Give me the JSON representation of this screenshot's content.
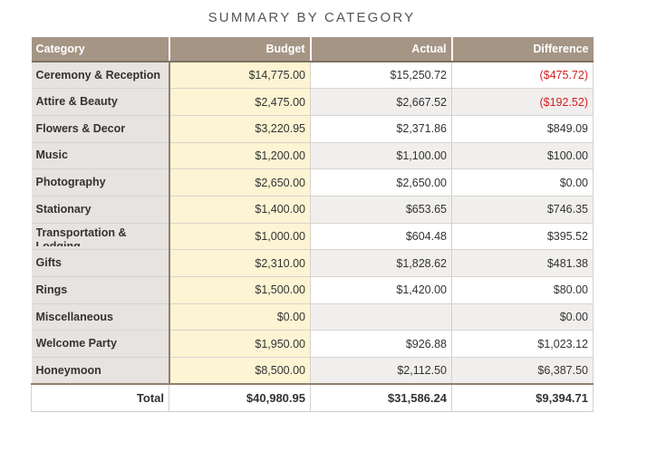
{
  "title": "SUMMARY BY CATEGORY",
  "headers": {
    "category": "Category",
    "budget": "Budget",
    "actual": "Actual",
    "difference": "Difference"
  },
  "rows": [
    {
      "category": "Ceremony & Reception",
      "budget": "$14,775.00",
      "actual": "$15,250.72",
      "difference": "($475.72)",
      "negative": true
    },
    {
      "category": "Attire & Beauty",
      "budget": "$2,475.00",
      "actual": "$2,667.52",
      "difference": "($192.52)",
      "negative": true
    },
    {
      "category": "Flowers & Decor",
      "budget": "$3,220.95",
      "actual": "$2,371.86",
      "difference": "$849.09",
      "negative": false
    },
    {
      "category": "Music",
      "budget": "$1,200.00",
      "actual": "$1,100.00",
      "difference": "$100.00",
      "negative": false
    },
    {
      "category": "Photography",
      "budget": "$2,650.00",
      "actual": "$2,650.00",
      "difference": "$0.00",
      "negative": false
    },
    {
      "category": "Stationary",
      "budget": "$1,400.00",
      "actual": "$653.65",
      "difference": "$746.35",
      "negative": false
    },
    {
      "category": "Transportation & Lodging",
      "budget": "$1,000.00",
      "actual": "$604.48",
      "difference": "$395.52",
      "negative": false
    },
    {
      "category": "Gifts",
      "budget": "$2,310.00",
      "actual": "$1,828.62",
      "difference": "$481.38",
      "negative": false
    },
    {
      "category": "Rings",
      "budget": "$1,500.00",
      "actual": "$1,420.00",
      "difference": "$80.00",
      "negative": false
    },
    {
      "category": "Miscellaneous",
      "budget": "$0.00",
      "actual": "",
      "difference": "$0.00",
      "negative": false
    },
    {
      "category": "Welcome Party",
      "budget": "$1,950.00",
      "actual": "$926.88",
      "difference": "$1,023.12",
      "negative": false
    },
    {
      "category": "Honeymoon",
      "budget": "$8,500.00",
      "actual": "$2,112.50",
      "difference": "$6,387.50",
      "negative": false
    }
  ],
  "totals": {
    "label": "Total",
    "budget": "$40,980.95",
    "actual": "$31,586.24",
    "difference": "$9,394.71"
  },
  "colors": {
    "header_bg": "#a59585",
    "category_bg": "#e6e3e0",
    "budget_bg": "#fdf4d3",
    "negative_text": "#d42020"
  }
}
